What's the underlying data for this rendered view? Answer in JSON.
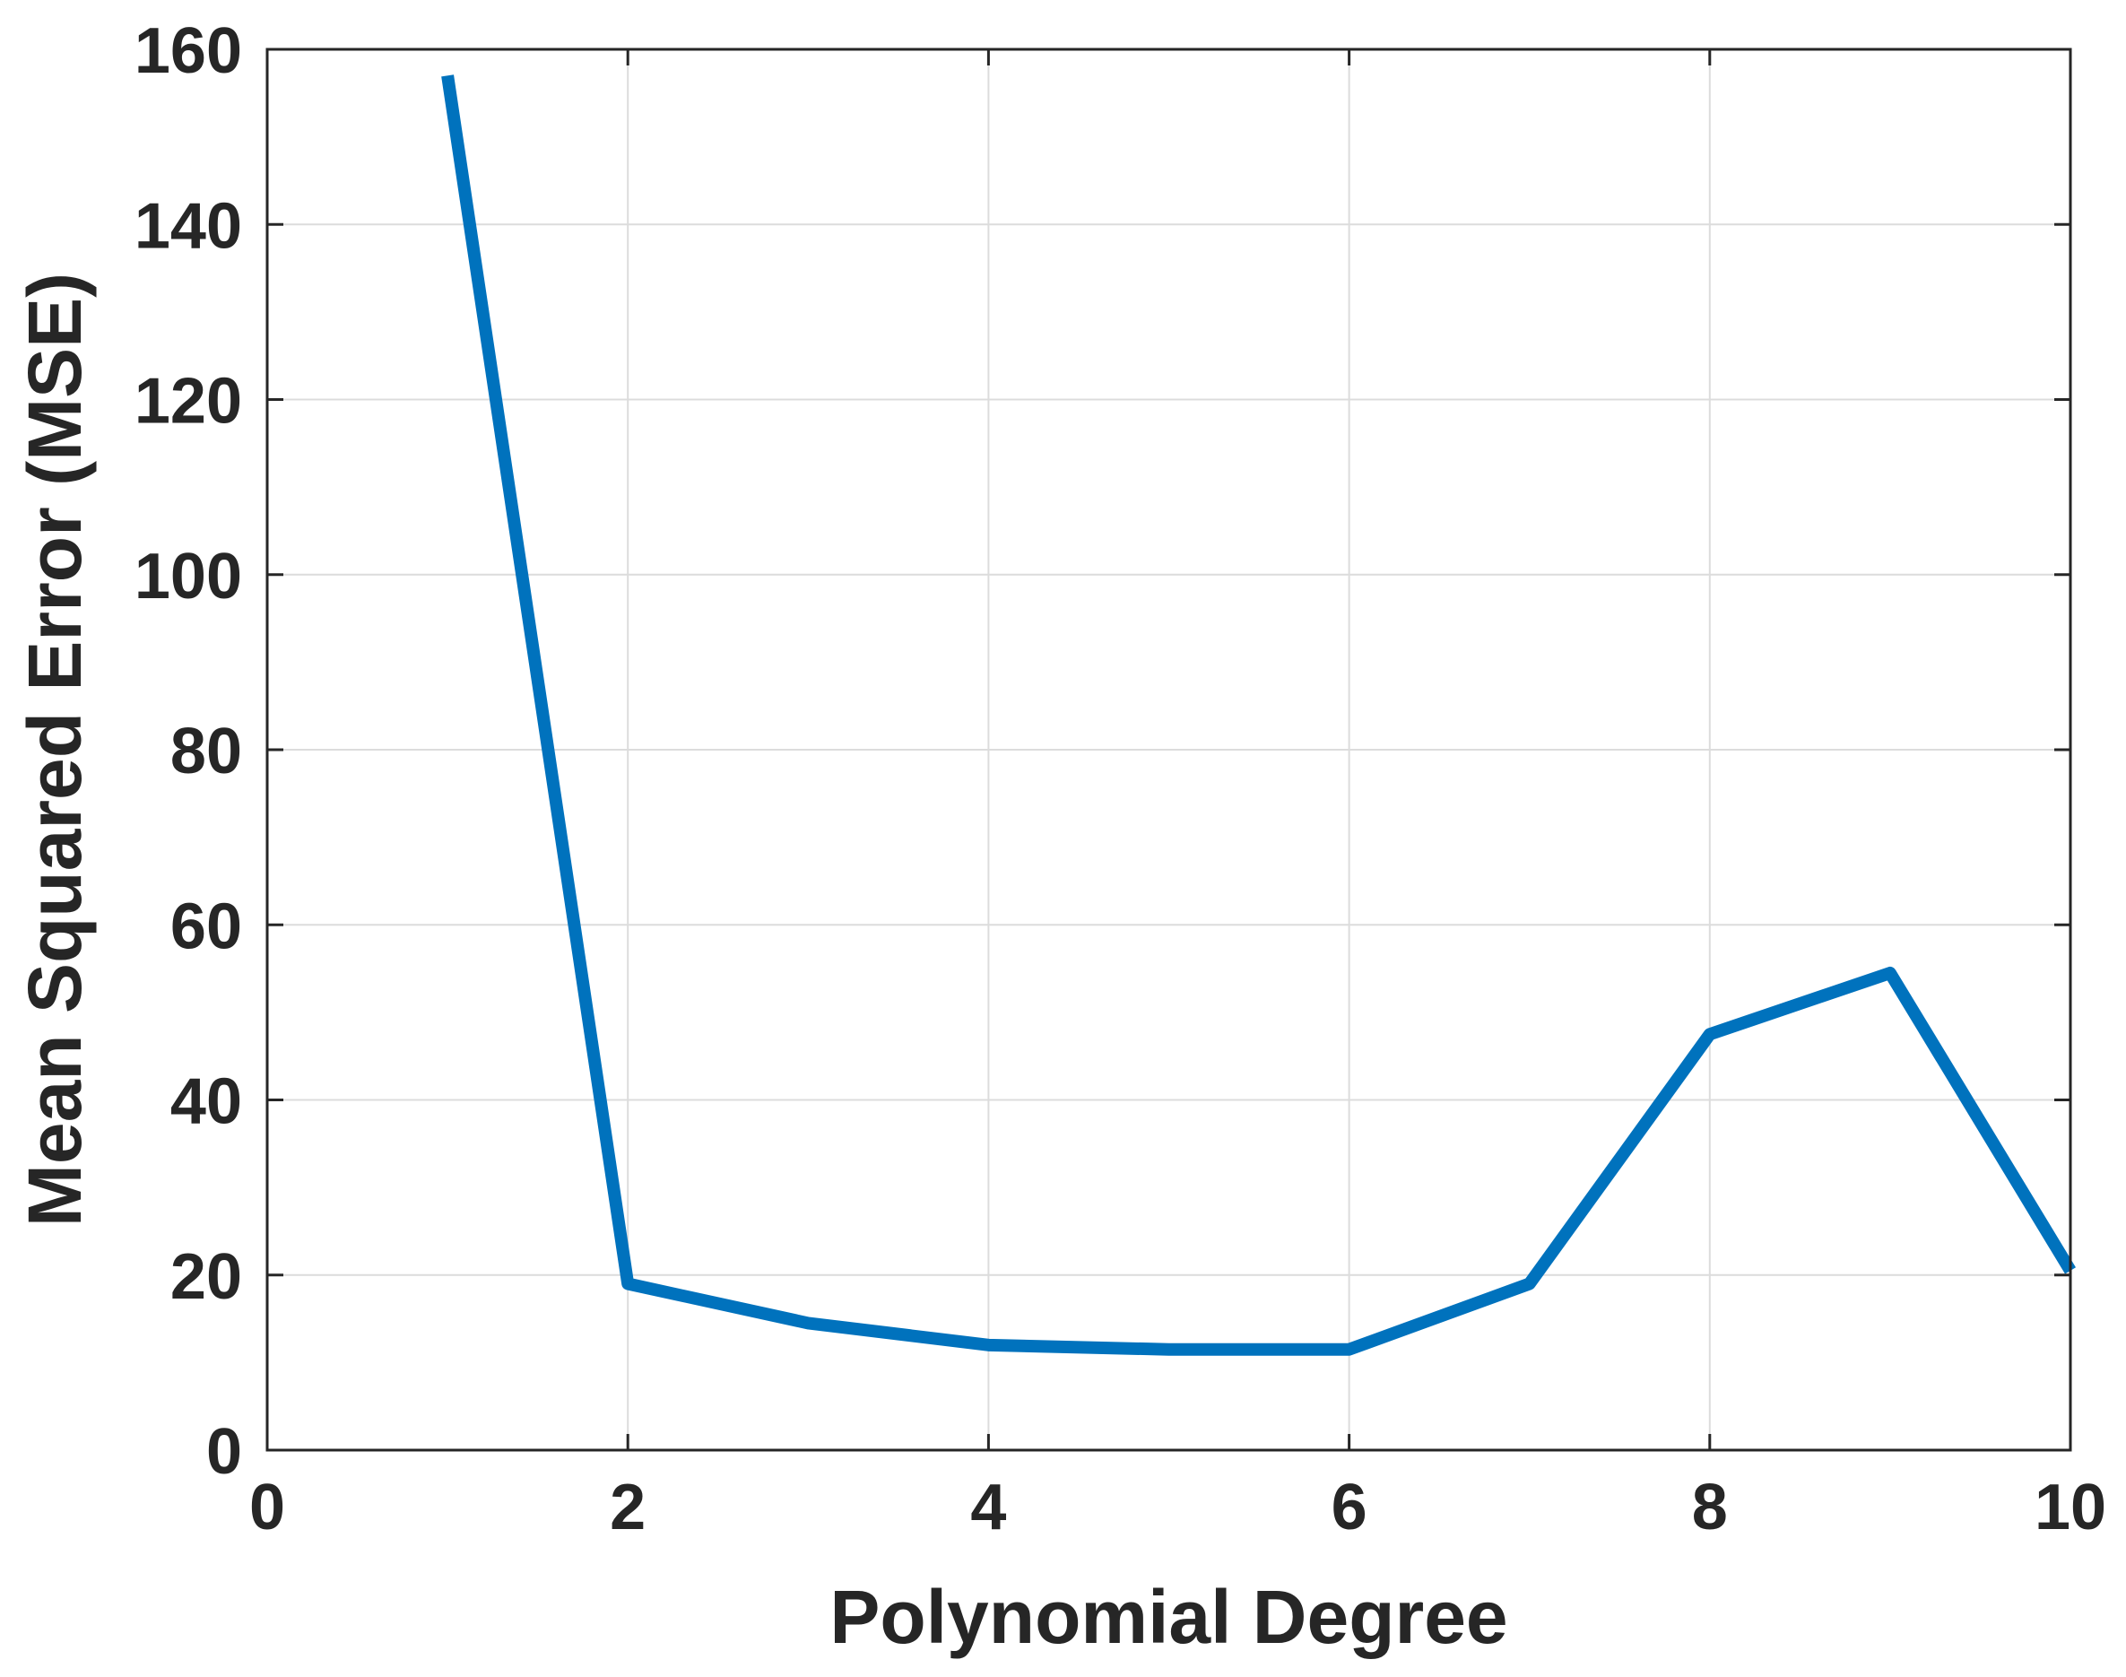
{
  "chart_data": {
    "type": "line",
    "title": "",
    "xlabel": "Polynomial Degree",
    "ylabel": "Mean Squared Error (MSE)",
    "xlim": [
      0,
      10
    ],
    "ylim": [
      0,
      160
    ],
    "x_ticks": [
      0,
      2,
      4,
      6,
      8,
      10
    ],
    "y_ticks": [
      0,
      20,
      40,
      60,
      80,
      100,
      120,
      140,
      160
    ],
    "x_tick_labels": [
      "0",
      "2",
      "4",
      "6",
      "8",
      "10"
    ],
    "y_tick_labels": [
      "0",
      "20",
      "40",
      "60",
      "80",
      "100",
      "120",
      "140",
      "160"
    ],
    "grid": true,
    "series": [
      {
        "color": "#0072bd",
        "x": [
          1,
          2,
          3,
          4,
          5,
          6,
          7,
          8,
          9,
          10
        ],
        "y": [
          157,
          19,
          14.5,
          12,
          11.5,
          11.5,
          19,
          47.5,
          54.5,
          20.5
        ]
      }
    ]
  }
}
